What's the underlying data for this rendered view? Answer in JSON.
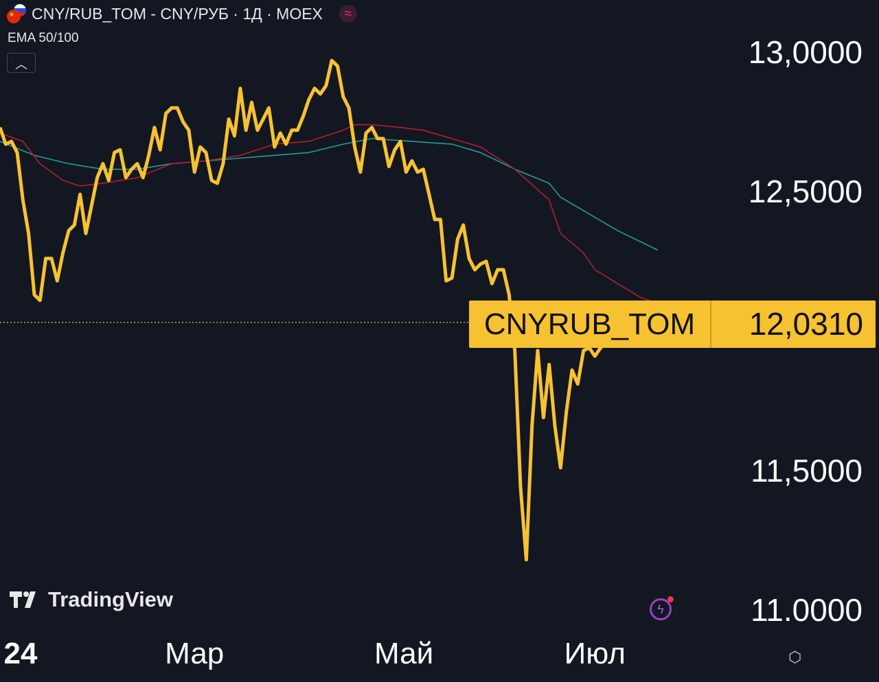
{
  "header": {
    "title": "CNY/RUB_TOM - CNY/РУБ · 1Д · MOEX",
    "indicator": "EMA 50/100",
    "collapse_icon": "chevron-up-icon",
    "data_icon": "approx-wave-icon"
  },
  "branding": {
    "logo_text": "TradingView"
  },
  "price_label": {
    "symbol": "CNYRUB_TOM",
    "value": "12,0310"
  },
  "colors": {
    "background": "#131722",
    "price": "#f7c231",
    "ema50": "#b2202a",
    "ema100": "#1e9e9c",
    "label": "#f7c231"
  },
  "chart_data": {
    "type": "line",
    "title": "CNY/RUB_TOM - CNY/РУБ · 1Д · MOEX",
    "ylim": [
      10.9,
      13.15
    ],
    "y_ticks": [
      {
        "value": 13.0,
        "label": "13,0000"
      },
      {
        "value": 12.5,
        "label": "12,5000"
      },
      {
        "value": 11.5,
        "label": "11,5000"
      },
      {
        "value": 11.0,
        "label": "11.0000"
      }
    ],
    "x_ticks": [
      {
        "index": 3.6,
        "label": "24"
      },
      {
        "index": 34,
        "label": "Мар"
      },
      {
        "index": 70.6,
        "label": "Май"
      },
      {
        "index": 104,
        "label": "Июл"
      }
    ],
    "last_value": 12.031,
    "grid": false,
    "series": [
      {
        "name": "CNYRUB_TOM",
        "values": [
          12.73,
          12.67,
          12.68,
          12.64,
          12.47,
          12.35,
          12.13,
          12.11,
          12.26,
          12.26,
          12.18,
          12.28,
          12.36,
          12.38,
          12.49,
          12.35,
          12.45,
          12.55,
          12.6,
          12.54,
          12.64,
          12.65,
          12.55,
          12.58,
          12.6,
          12.55,
          12.63,
          12.73,
          12.65,
          12.78,
          12.8,
          12.8,
          12.75,
          12.72,
          12.57,
          12.66,
          12.64,
          12.54,
          12.53,
          12.6,
          12.76,
          12.7,
          12.87,
          12.72,
          12.82,
          12.72,
          12.76,
          12.8,
          12.66,
          12.71,
          12.67,
          12.72,
          12.72,
          12.77,
          12.83,
          12.87,
          12.85,
          12.88,
          12.97,
          12.95,
          12.84,
          12.8,
          12.66,
          12.57,
          12.71,
          12.73,
          12.69,
          12.69,
          12.59,
          12.65,
          12.68,
          12.57,
          12.61,
          12.57,
          12.58,
          12.49,
          12.4,
          12.4,
          12.18,
          12.19,
          12.33,
          12.38,
          12.26,
          12.22,
          12.24,
          12.25,
          12.17,
          12.22,
          12.22,
          12.13,
          11.93,
          11.44,
          11.18,
          11.66,
          11.93,
          11.69,
          11.88,
          11.66,
          11.51,
          11.71,
          11.86,
          11.81,
          11.93,
          11.94,
          11.91,
          11.94,
          11.96,
          12.03
        ]
      },
      {
        "name": "EMA 50",
        "points": [
          [
            0,
            12.71
          ],
          [
            4,
            12.68
          ],
          [
            7,
            12.6
          ],
          [
            11,
            12.54
          ],
          [
            14,
            12.52
          ],
          [
            18,
            12.53
          ],
          [
            24,
            12.55
          ],
          [
            30,
            12.6
          ],
          [
            36,
            12.61
          ],
          [
            42,
            12.63
          ],
          [
            48,
            12.67
          ],
          [
            54,
            12.68
          ],
          [
            60,
            12.72
          ],
          [
            62,
            12.74
          ],
          [
            65,
            12.74
          ],
          [
            70,
            12.73
          ],
          [
            74,
            12.72
          ],
          [
            79,
            12.69
          ],
          [
            84,
            12.66
          ],
          [
            90,
            12.58
          ],
          [
            96,
            12.47
          ],
          [
            98,
            12.35
          ],
          [
            102,
            12.28
          ],
          [
            104,
            12.22
          ],
          [
            108,
            12.17
          ],
          [
            112,
            12.12
          ],
          [
            115,
            12.1
          ]
        ]
      },
      {
        "name": "EMA 100",
        "points": [
          [
            0,
            12.68
          ],
          [
            6,
            12.63
          ],
          [
            12,
            12.6
          ],
          [
            18,
            12.58
          ],
          [
            24,
            12.58
          ],
          [
            30,
            12.6
          ],
          [
            36,
            12.61
          ],
          [
            42,
            12.62
          ],
          [
            48,
            12.63
          ],
          [
            54,
            12.64
          ],
          [
            60,
            12.67
          ],
          [
            65,
            12.69
          ],
          [
            72,
            12.68
          ],
          [
            79,
            12.67
          ],
          [
            84,
            12.64
          ],
          [
            90,
            12.58
          ],
          [
            96,
            12.53
          ],
          [
            98,
            12.48
          ],
          [
            103,
            12.42
          ],
          [
            108,
            12.36
          ],
          [
            115,
            12.29
          ]
        ]
      }
    ]
  }
}
